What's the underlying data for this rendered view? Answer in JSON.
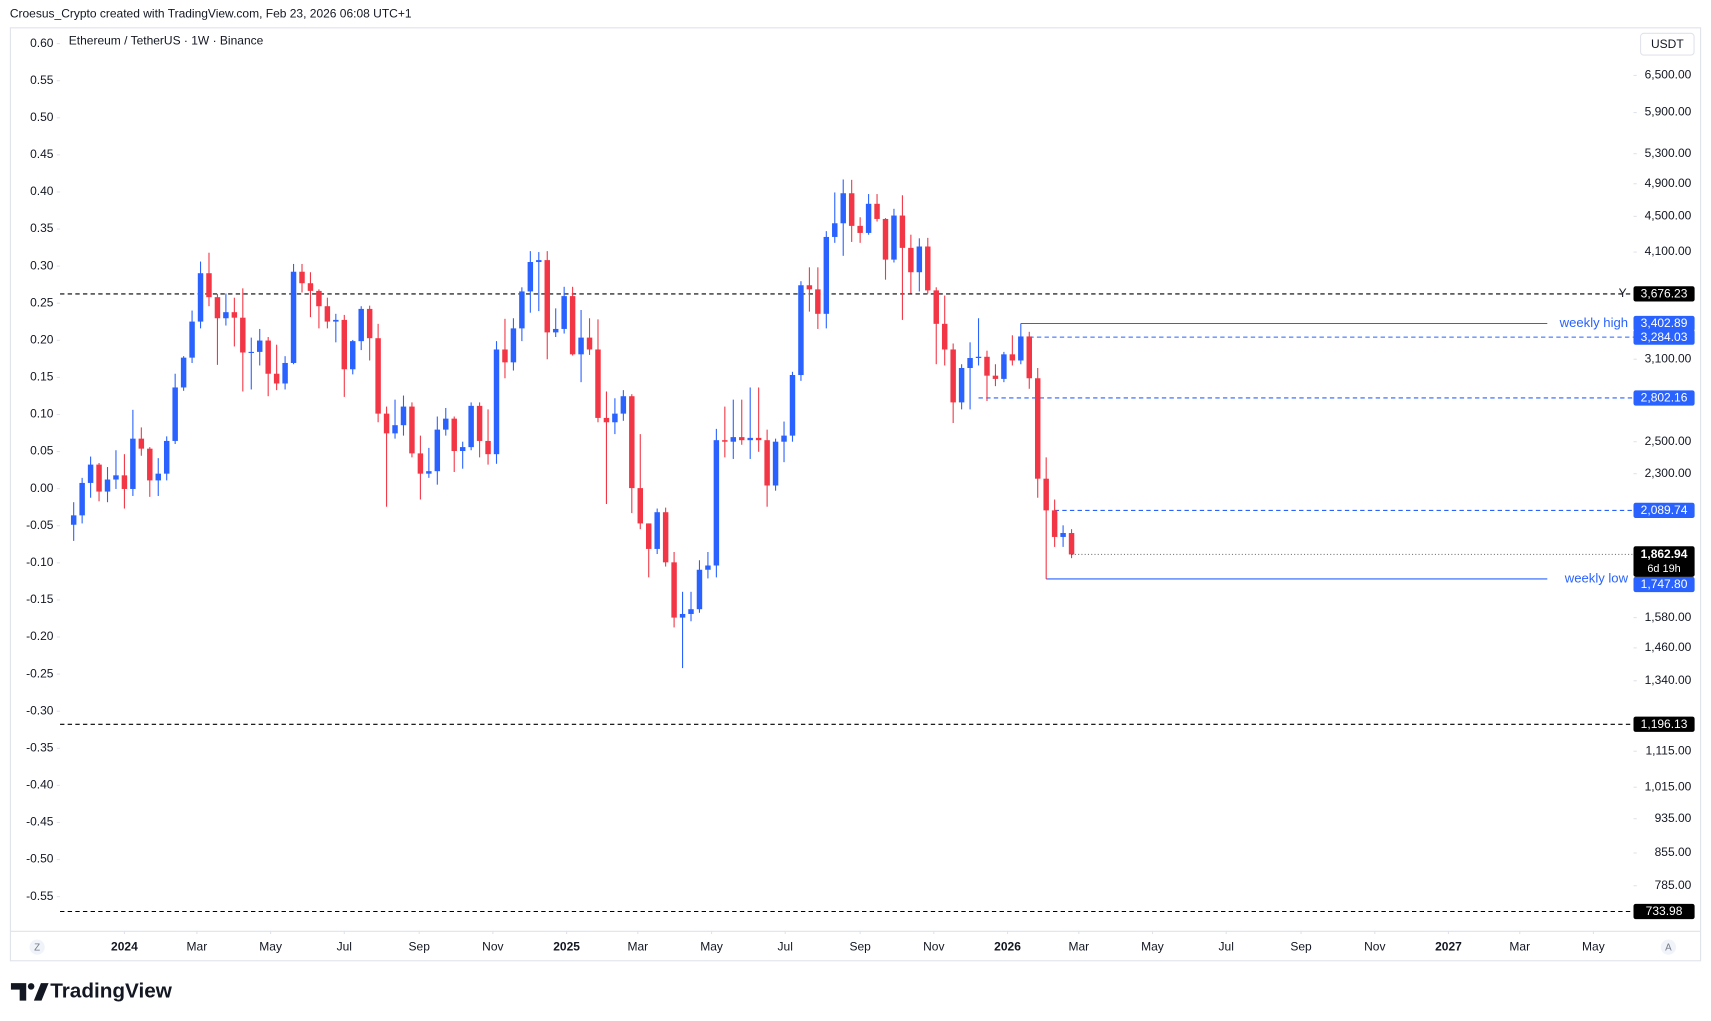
{
  "header": {
    "credit": "Croesus_Crypto created with TradingView.com, Feb 23, 2026 06:08 UTC+1"
  },
  "footer": {
    "brand": "TradingView"
  },
  "chart_data": {
    "type": "candlestick",
    "title": "Ethereum / TetherUS · 1W · Binance",
    "currency": "USDT",
    "scale_buttons": [
      "Z",
      "A"
    ],
    "log_scale": true,
    "grid": false,
    "up_color": "#2962ff",
    "down_color": "#f23645",
    "candles": {
      "open": [
        2013,
        2063,
        2245,
        2355,
        2195,
        2265,
        2290,
        2210,
        2520,
        2455,
        2260,
        2300,
        2505,
        2880,
        3113,
        3420,
        3880,
        3645,
        3450,
        3505,
        3455,
        3155,
        3160,
        3255,
        2985,
        2910,
        3070,
        3895,
        3780,
        3705,
        3560,
        3420,
        3435,
        3020,
        3250,
        3535,
        3275,
        2690,
        2555,
        2610,
        2740,
        2425,
        2300,
        2315,
        2580,
        2655,
        2440,
        2465,
        2745,
        2505,
        2420,
        3180,
        3075,
        3360,
        3700,
        3995,
        4015,
        3325,
        3355,
        3655,
        3140,
        3280,
        3180,
        2660,
        2630,
        2690,
        2815,
        2215,
        2020,
        1890,
        2080,
        1825,
        1580,
        1595,
        1615,
        1790,
        1810,
        2510,
        2500,
        2530,
        2510,
        2525,
        2510,
        2230,
        2500,
        2540,
        2975,
        3760,
        3720,
        3490,
        4265,
        4420,
        4780,
        4390,
        4310,
        4650,
        4470,
        4020,
        4510,
        4145,
        3890,
        4160,
        3710,
        3400,
        3180,
        2770,
        3030,
        3110,
        3120,
        2970,
        2945,
        3140,
        3090,
        3290,
        2950,
        2270,
        2090,
        1950,
        1970
      ],
      "high": [
        2135,
        2275,
        2405,
        2365,
        2340,
        2445,
        2420,
        2717,
        2595,
        2465,
        2395,
        2535,
        2985,
        3125,
        3520,
        4000,
        4093,
        3675,
        3680,
        3640,
        3730,
        3280,
        3355,
        3285,
        3220,
        3125,
        3975,
        3975,
        3890,
        3720,
        3640,
        3490,
        3480,
        3260,
        3560,
        3565,
        3400,
        2740,
        2790,
        2820,
        2770,
        2540,
        2460,
        2670,
        2730,
        2670,
        2500,
        2770,
        2770,
        2720,
        3250,
        3445,
        3450,
        3740,
        4110,
        4100,
        4110,
        3540,
        3745,
        3745,
        3525,
        3450,
        3440,
        2850,
        2800,
        2860,
        2830,
        2550,
        2020,
        2100,
        2105,
        1875,
        1690,
        1690,
        1835,
        1875,
        2585,
        2740,
        2790,
        2790,
        2880,
        2880,
        2580,
        2520,
        2635,
        3000,
        3800,
        3940,
        3940,
        4330,
        4790,
        4955,
        4950,
        4490,
        4770,
        4770,
        4480,
        4590,
        4755,
        4290,
        4250,
        4255,
        3740,
        3660,
        3230,
        3060,
        3240,
        3450,
        3170,
        3060,
        3160,
        3300,
        3402.89,
        3330,
        3030,
        2400,
        2150,
        2010,
        1990
      ],
      "low": [
        1930,
        2020,
        2160,
        2140,
        2135,
        2210,
        2100,
        2170,
        2410,
        2165,
        2170,
        2260,
        2485,
        2855,
        3070,
        3360,
        3560,
        3055,
        3385,
        3205,
        2850,
        2865,
        3050,
        2815,
        2860,
        2865,
        3060,
        3690,
        3460,
        3360,
        3360,
        3240,
        2810,
        2980,
        3175,
        3090,
        2630,
        2110,
        2520,
        2540,
        2400,
        2150,
        2275,
        2235,
        2540,
        2310,
        2330,
        2445,
        2400,
        2355,
        2360,
        2950,
        3010,
        3250,
        3500,
        3515,
        3100,
        3285,
        3315,
        3130,
        2920,
        3135,
        2630,
        2125,
        2550,
        2640,
        2075,
        1990,
        1755,
        1865,
        1805,
        1540,
        1385,
        1565,
        1600,
        1750,
        1755,
        2400,
        2390,
        2480,
        2390,
        2435,
        2110,
        2200,
        2370,
        2500,
        2930,
        3510,
        3355,
        3360,
        4200,
        4060,
        4210,
        4200,
        4290,
        4440,
        3815,
        3990,
        3435,
        3680,
        3700,
        3680,
        3060,
        3050,
        2625,
        2720,
        2720,
        3050,
        2780,
        2890,
        2920,
        3050,
        3060,
        2870,
        2160,
        1747.8,
        1900,
        1900,
        1845
      ],
      "close": [
        2063,
        2245,
        2355,
        2195,
        2265,
        2290,
        2210,
        2520,
        2455,
        2260,
        2300,
        2505,
        2880,
        3113,
        3420,
        3880,
        3645,
        3450,
        3505,
        3455,
        3155,
        3160,
        3255,
        2985,
        2910,
        3070,
        3895,
        3780,
        3705,
        3560,
        3420,
        3435,
        3020,
        3250,
        3535,
        3275,
        2690,
        2555,
        2610,
        2740,
        2425,
        2300,
        2315,
        2580,
        2655,
        2440,
        2465,
        2745,
        2505,
        2420,
        3180,
        3075,
        3360,
        3700,
        3995,
        4015,
        3325,
        3355,
        3655,
        3140,
        3280,
        3180,
        2660,
        2630,
        2690,
        2815,
        2215,
        2020,
        1890,
        2080,
        1825,
        1580,
        1595,
        1615,
        1790,
        1810,
        2510,
        2500,
        2530,
        2510,
        2525,
        2510,
        2230,
        2500,
        2540,
        2975,
        3760,
        3720,
        3490,
        4265,
        4420,
        4780,
        4390,
        4310,
        4650,
        4470,
        4020,
        4510,
        4145,
        3890,
        4160,
        3710,
        3400,
        3180,
        2770,
        3030,
        3110,
        3120,
        2970,
        2945,
        3140,
        3090,
        3290,
        2950,
        2270,
        2090,
        1950,
        1970,
        1862.94
      ]
    },
    "xticks": [
      {
        "value": 6.0,
        "label": "2024"
      },
      {
        "value": 14.57,
        "label": "Mar"
      },
      {
        "value": 23.29,
        "label": "May"
      },
      {
        "value": 32.0,
        "label": "Jul"
      },
      {
        "value": 40.86,
        "label": "Sep"
      },
      {
        "value": 49.57,
        "label": "Nov"
      },
      {
        "value": 58.29,
        "label": "2025"
      },
      {
        "value": 66.71,
        "label": "Mar"
      },
      {
        "value": 75.43,
        "label": "May"
      },
      {
        "value": 84.14,
        "label": "Jul"
      },
      {
        "value": 93.0,
        "label": "Sep"
      },
      {
        "value": 101.71,
        "label": "Nov"
      },
      {
        "value": 110.43,
        "label": "2026"
      },
      {
        "value": 118.86,
        "label": "Mar"
      },
      {
        "value": 127.57,
        "label": "May"
      },
      {
        "value": 136.29,
        "label": "Jul"
      },
      {
        "value": 145.14,
        "label": "Sep"
      },
      {
        "value": 153.86,
        "label": "Nov"
      },
      {
        "value": 162.57,
        "label": "2027"
      },
      {
        "value": 171.0,
        "label": "Mar"
      },
      {
        "value": 179.71,
        "label": "May"
      }
    ],
    "ylim": [
      698,
      7370
    ],
    "yticks": [
      {
        "value": 6500,
        "label": "6,500.00"
      },
      {
        "value": 5900,
        "label": "5,900.00"
      },
      {
        "value": 5300,
        "label": "5,300.00"
      },
      {
        "value": 4900,
        "label": "4,900.00"
      },
      {
        "value": 4500,
        "label": "4,500.00"
      },
      {
        "value": 4100,
        "label": "4,100.00"
      },
      {
        "value": 3100,
        "label": "3,100.00"
      },
      {
        "value": 2500,
        "label": "2,500.00"
      },
      {
        "value": 2300,
        "label": "2,300.00"
      },
      {
        "value": 1580,
        "label": "1,580.00"
      },
      {
        "value": 1460,
        "label": "1,460.00"
      },
      {
        "value": 1340,
        "label": "1,340.00"
      },
      {
        "value": 1115,
        "label": "1,115.00"
      },
      {
        "value": 1015,
        "label": "1,015.00"
      },
      {
        "value": 935,
        "label": "935.00"
      },
      {
        "value": 855,
        "label": "855.00"
      },
      {
        "value": 785,
        "label": "785.00"
      }
    ],
    "y2lim": [
      -0.596,
      0.622
    ],
    "y2ticks": [
      {
        "value": 0.6,
        "label": "0.60"
      },
      0.55,
      {
        "value": 0.5,
        "label": "0.50"
      },
      0.45,
      {
        "value": 0.4,
        "label": "0.40"
      },
      0.35,
      {
        "value": 0.3,
        "label": "0.30"
      },
      0.25,
      {
        "value": 0.2,
        "label": "0.20"
      },
      0.15,
      {
        "value": 0.1,
        "label": "0.10"
      },
      0.05,
      {
        "value": 0,
        "label": "0.00"
      },
      -0.05,
      {
        "value": -0.1,
        "label": "-0.10"
      },
      -0.15,
      {
        "value": -0.2,
        "label": "-0.20"
      },
      -0.25,
      {
        "value": -0.3,
        "label": "-0.30"
      },
      -0.35,
      {
        "value": -0.4,
        "label": "-0.40"
      },
      -0.45,
      {
        "value": -0.5,
        "label": "-0.50"
      },
      -0.55
    ],
    "levels": [
      {
        "value": 3676.23,
        "label": "3,676.23",
        "color": "#000000",
        "dash": true,
        "tag": "Y"
      },
      {
        "value": 3402.89,
        "label": "3,402.89",
        "color": "#2962ff",
        "dash": false,
        "from": 112,
        "text": "weekly high"
      },
      {
        "value": 3284.03,
        "label": "3,284.03",
        "color": "#2962ff",
        "dash": true,
        "from": 113
      },
      {
        "value": 2802.16,
        "label": "2,802.16",
        "color": "#2962ff",
        "dash": true,
        "from": 107
      },
      {
        "value": 2089.74,
        "label": "2,089.74",
        "color": "#2962ff",
        "dash": true,
        "from": 116
      },
      {
        "value": 1747.8,
        "label": "1,747.80",
        "color": "#2962ff",
        "dash": false,
        "from": 115,
        "text": "weekly low"
      },
      {
        "value": 1196.13,
        "label": "1,196.13",
        "color": "#000000",
        "dash": true
      },
      {
        "value": 733.98,
        "label": "733.98",
        "color": "#000000",
        "dash": true
      }
    ],
    "last_price": {
      "value": 1862.94,
      "label": "1,862.94",
      "countdown": "6d 19h",
      "color": "#000000"
    }
  }
}
